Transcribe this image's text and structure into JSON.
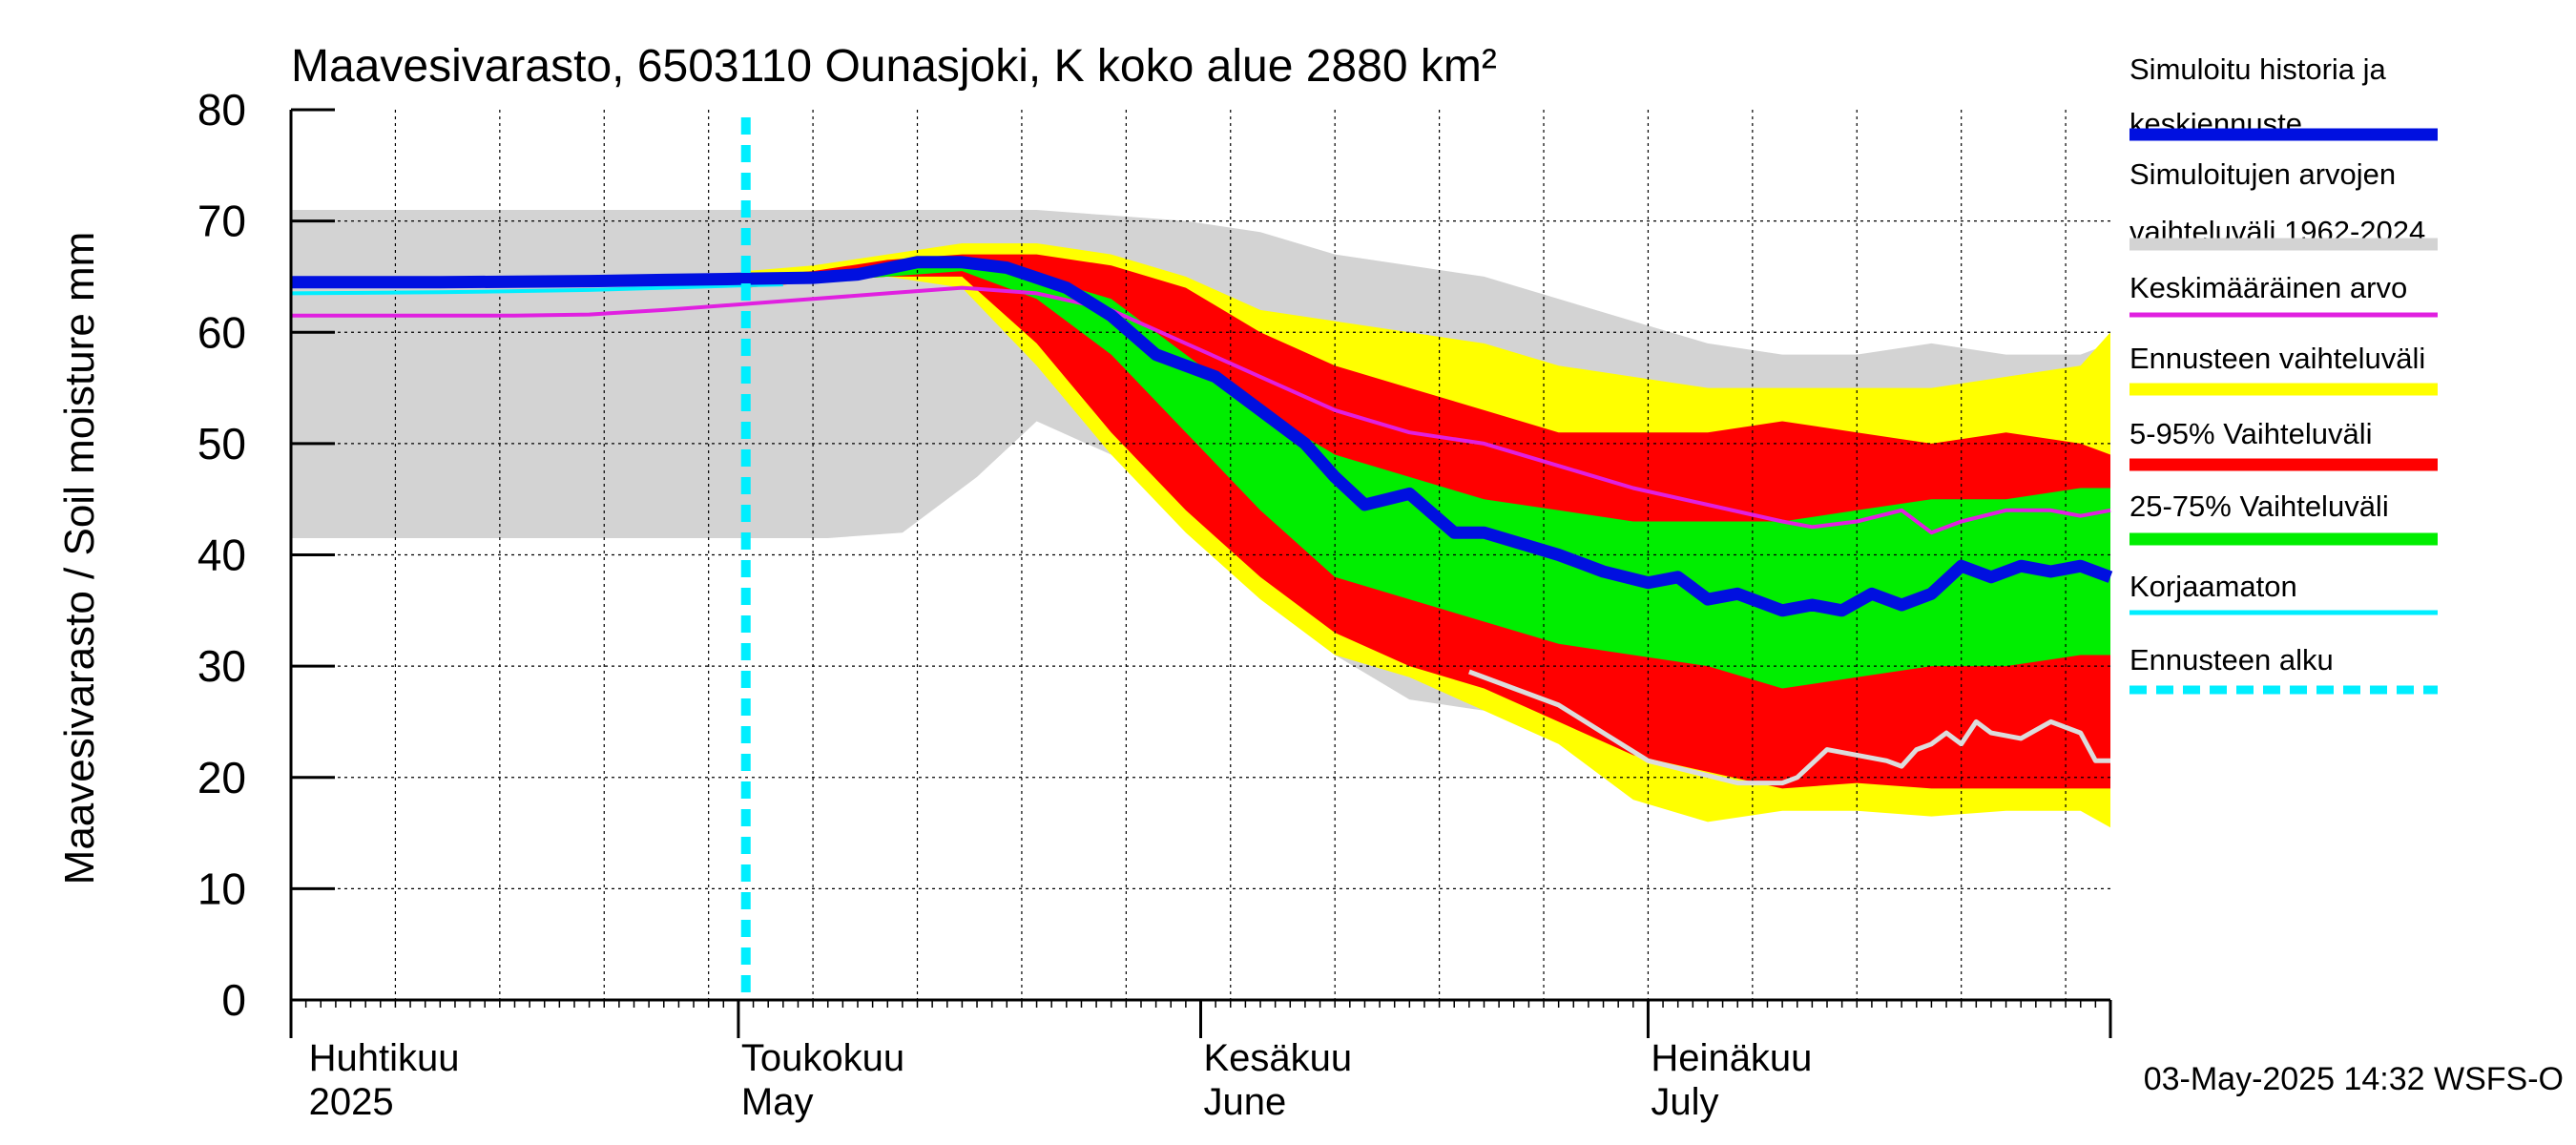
{
  "chart_data": {
    "type": "area",
    "title": "Maavesivarasto, 6503110 Ounasjoki, K koko alue 2880 km²",
    "ylabel": "Maavesivarasto / Soil moisture   mm",
    "xlabel": "",
    "ylim": [
      0,
      80
    ],
    "xlim_days": [
      0,
      122
    ],
    "yticks": [
      "0",
      "10",
      "20",
      "30",
      "40",
      "50",
      "60",
      "70",
      "80"
    ],
    "grid": true,
    "legend_position": "right",
    "month_labels": [
      {
        "fi": "Huhtikuu",
        "en": "2025",
        "day": 1
      },
      {
        "fi": "Toukokuu",
        "en": "May",
        "day": 30
      },
      {
        "fi": "Kesäkuu",
        "en": "June",
        "day": 61
      },
      {
        "fi": "Heinäkuu",
        "en": "July",
        "day": 91
      }
    ],
    "forecast_start_day": 30.5,
    "timestamp": "03-May-2025 14:32 WSFS-O",
    "legend": [
      {
        "label": "Simuloitu historia ja keskiennuste",
        "lines": [
          "Simuloitu historia ja",
          "keskiennuste"
        ],
        "color": "#0010e0",
        "style": "thick"
      },
      {
        "label": "Simuloitujen arvojen vaihteluväli 1962-2024",
        "lines": [
          "Simuloitujen arvojen",
          "vaihteluväli 1962-2024"
        ],
        "color": "#d3d3d3",
        "style": "thick"
      },
      {
        "label": "Keskimääräinen arvo",
        "lines": [
          "Keskimääräinen arvo"
        ],
        "color": "#e020e0",
        "style": "thin"
      },
      {
        "label": "Ennusteen vaihteluväli",
        "lines": [
          "Ennusteen vaihteluväli"
        ],
        "color": "#ffff00",
        "style": "thick"
      },
      {
        "label": "5-95% Vaihteluväli",
        "lines": [
          "5-95% Vaihteluväli"
        ],
        "color": "#ff0000",
        "style": "thick"
      },
      {
        "label": "25-75% Vaihteluväli",
        "lines": [
          "25-75% Vaihteluväli"
        ],
        "color": "#00ee00",
        "style": "thick"
      },
      {
        "label": "Korjaamaton",
        "lines": [
          "Korjaamaton"
        ],
        "color": "#00eeff",
        "style": "thin"
      },
      {
        "label": "Ennusteen alku",
        "lines": [
          "Ennusteen alku"
        ],
        "color": "#00eeff",
        "style": "dashed"
      }
    ],
    "colors": {
      "history_range": "#d3d3d3",
      "forecast_range": "#ffff00",
      "p5_95": "#ff0000",
      "p25_75": "#00ee00",
      "median": "#0010e0",
      "mean": "#e020e0",
      "uncorrected": "#00eeff",
      "forecast_start": "#00eeff",
      "lower_history_line": "#dcdcdc"
    },
    "series": {
      "history_range": {
        "x": [
          0,
          20,
          30,
          36,
          41,
          46,
          50,
          55,
          60,
          65,
          70,
          75,
          80,
          85,
          90,
          95,
          100,
          105,
          110,
          115,
          120,
          122
        ],
        "high": [
          71,
          71,
          71,
          71,
          71,
          71,
          71,
          70.5,
          70,
          69,
          67,
          66,
          65,
          63,
          61,
          59,
          58,
          58,
          59,
          58,
          58,
          59
        ],
        "low": [
          41.5,
          41.5,
          41.5,
          41.5,
          42,
          47,
          52,
          49,
          44,
          38,
          31,
          27,
          26,
          24,
          22,
          20.5,
          20,
          19.5,
          19.5,
          19.5,
          19.5,
          20
        ]
      },
      "forecast_range": {
        "x": [
          30.5,
          35,
          40,
          45,
          50,
          55,
          60,
          65,
          70,
          75,
          80,
          85,
          90,
          95,
          100,
          105,
          110,
          115,
          120,
          122
        ],
        "high": [
          65.5,
          66,
          67,
          68,
          68,
          67,
          65,
          62,
          61,
          60,
          59,
          57,
          56,
          55,
          55,
          55,
          55,
          56,
          57,
          60
        ],
        "low": [
          64,
          64.5,
          65,
          64,
          57,
          49,
          42,
          36,
          31,
          29,
          26,
          23,
          18,
          16,
          17,
          17,
          16.5,
          17,
          17,
          15.5
        ]
      },
      "p5_95": {
        "x": [
          30.5,
          35,
          40,
          45,
          50,
          55,
          60,
          65,
          70,
          75,
          80,
          85,
          90,
          95,
          100,
          105,
          110,
          115,
          120,
          122
        ],
        "high": [
          65,
          65.5,
          66.5,
          67,
          67,
          66,
          64,
          60,
          57,
          55,
          53,
          51,
          51,
          51,
          52,
          51,
          50,
          51,
          50,
          49
        ],
        "low": [
          64,
          64.5,
          65,
          65,
          59,
          51,
          44,
          38,
          33,
          30,
          28,
          25,
          22,
          20.5,
          19,
          19.5,
          19,
          19,
          19,
          19
        ]
      },
      "p25_75": {
        "x": [
          30.5,
          35,
          40,
          45,
          50,
          55,
          60,
          65,
          70,
          75,
          80,
          85,
          90,
          95,
          100,
          105,
          110,
          115,
          120,
          122
        ],
        "high": [
          64.8,
          65,
          66,
          66,
          65,
          63,
          58,
          53,
          49,
          47,
          45,
          44,
          43,
          43,
          43,
          44,
          45,
          45,
          46,
          46
        ],
        "low": [
          64.5,
          64.5,
          65,
          65.5,
          63,
          58,
          51,
          44,
          38,
          36,
          34,
          32,
          31,
          30,
          28,
          29,
          30,
          30,
          31,
          31
        ]
      },
      "median": {
        "x": [
          0,
          10,
          20,
          25,
          30,
          35,
          38,
          42,
          45,
          48,
          52,
          55,
          58,
          62,
          65,
          68,
          70,
          72,
          75,
          78,
          80,
          85,
          88,
          91,
          93,
          95,
          97,
          100,
          102,
          104,
          106,
          108,
          110,
          112,
          114,
          116,
          118,
          120,
          122
        ],
        "y": [
          64.5,
          64.5,
          64.6,
          64.7,
          64.8,
          64.9,
          65.2,
          66.3,
          66.3,
          65.8,
          64,
          61.5,
          58,
          56,
          53,
          50,
          47,
          44.5,
          45.5,
          42,
          42,
          40,
          38.5,
          37.5,
          38,
          36,
          36.5,
          35,
          35.5,
          35,
          36.5,
          35.5,
          36.5,
          39,
          38,
          39,
          38.5,
          39,
          38
        ]
      },
      "mean": {
        "x": [
          0,
          15,
          20,
          25,
          30,
          35,
          40,
          45,
          50,
          55,
          60,
          65,
          70,
          75,
          80,
          85,
          90,
          95,
          100,
          102,
          105,
          108,
          110,
          112,
          115,
          118,
          120,
          122
        ],
        "y": [
          61.5,
          61.5,
          61.6,
          62,
          62.5,
          63,
          63.5,
          64,
          63.5,
          62,
          59,
          56,
          53,
          51,
          50,
          48,
          46,
          44.5,
          43,
          42.5,
          43,
          44,
          42,
          43,
          44,
          44,
          43.5,
          44
        ]
      },
      "uncorrected": {
        "x": [
          0,
          10,
          20,
          25,
          30,
          33
        ],
        "y": [
          63.5,
          63.6,
          63.8,
          64,
          64.2,
          64.3
        ]
      },
      "lower_history_line": {
        "x": [
          79,
          82,
          85,
          88,
          91,
          94,
          97,
          100,
          101,
          103,
          105,
          107,
          108,
          109,
          110,
          111,
          112,
          113,
          114,
          116,
          118,
          120,
          121,
          122
        ],
        "y": [
          29.5,
          28,
          26.5,
          24,
          21.5,
          20.5,
          19.5,
          19.5,
          20,
          22.5,
          22,
          21.5,
          21,
          22.5,
          23,
          24,
          23,
          25,
          24,
          23.5,
          25,
          24,
          21.5,
          21.5
        ]
      }
    }
  }
}
